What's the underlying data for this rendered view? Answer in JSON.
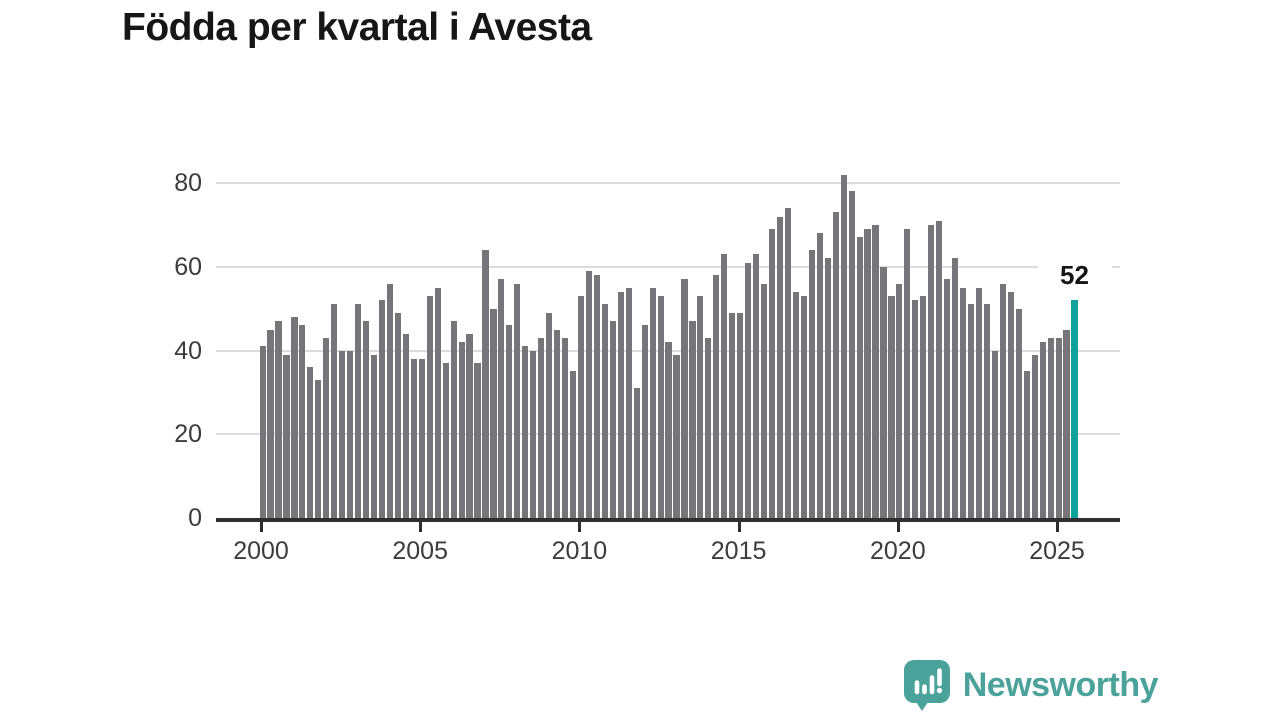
{
  "title": "Födda per kvartal i Avesta",
  "chart_data": {
    "type": "bar",
    "title": "Födda per kvartal i Avesta",
    "x_tick_labels": [
      "2000",
      "2005",
      "2010",
      "2015",
      "2020",
      "2025"
    ],
    "x_start_year": 2000,
    "quarters_per_label_step": 20,
    "yticks": [
      0,
      20,
      40,
      60,
      80
    ],
    "ylim": [
      0,
      80
    ],
    "grid": "horizontal",
    "legend": "none",
    "start_period": "2000 Q1",
    "end_period": "2025 Q3",
    "values": [
      41,
      45,
      47,
      39,
      48,
      46,
      36,
      33,
      43,
      51,
      40,
      40,
      51,
      47,
      39,
      52,
      56,
      49,
      44,
      38,
      38,
      53,
      55,
      37,
      47,
      42,
      44,
      37,
      64,
      50,
      57,
      46,
      56,
      41,
      40,
      43,
      49,
      45,
      43,
      35,
      53,
      59,
      58,
      51,
      47,
      54,
      55,
      31,
      46,
      55,
      53,
      42,
      39,
      57,
      47,
      53,
      43,
      58,
      63,
      49,
      49,
      61,
      63,
      56,
      69,
      72,
      74,
      54,
      53,
      64,
      68,
      62,
      73,
      82,
      78,
      67,
      69,
      70,
      60,
      53,
      56,
      69,
      52,
      53,
      70,
      71,
      57,
      62,
      55,
      51,
      55,
      51,
      40,
      56,
      54,
      50,
      35,
      39,
      42,
      43,
      43,
      45,
      52
    ],
    "highlight_last": true,
    "last_value_label": "52"
  },
  "colors": {
    "bar": "#75757a",
    "highlight": "#10a29c",
    "axis": "#2e2e2e",
    "grid": "#dcdcdc",
    "tick_text": "#3c3c3c",
    "title_text": "#161616",
    "brand": "#4ba29a"
  },
  "branding": {
    "name": "Newsworthy",
    "icon": "bar-chart-speech-bubble-icon"
  }
}
